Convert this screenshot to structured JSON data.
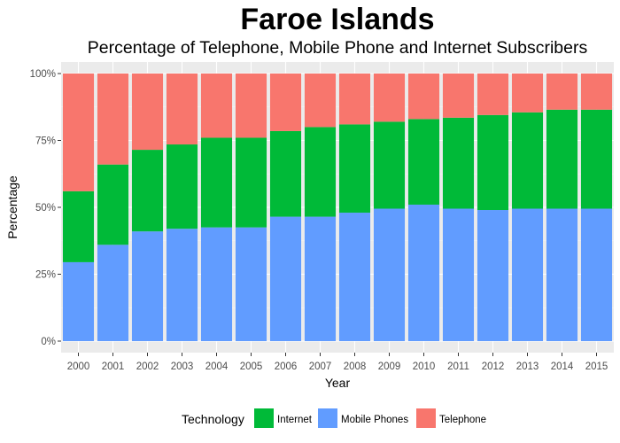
{
  "chart_data": {
    "type": "bar",
    "stacked": true,
    "percent": true,
    "title": "Faroe Islands",
    "subtitle": "Percentage of Telephone, Mobile Phone and Internet Subscribers",
    "xlabel": "Year",
    "ylabel": "Percentage",
    "ylim": [
      0,
      100
    ],
    "yticks": [
      "0%",
      "25%",
      "50%",
      "75%",
      "100%"
    ],
    "ytick_values": [
      0,
      25,
      50,
      75,
      100
    ],
    "grid": true,
    "legend_position": "bottom",
    "legend_title": "Technology",
    "categories": [
      "2000",
      "2001",
      "2002",
      "2003",
      "2004",
      "2005",
      "2006",
      "2007",
      "2008",
      "2009",
      "2010",
      "2011",
      "2012",
      "2013",
      "2014",
      "2015"
    ],
    "stack_order_bottom_to_top": [
      "Mobile Phones",
      "Internet",
      "Telephone"
    ],
    "series": [
      {
        "name": "Internet",
        "color": "#00ba38",
        "values": [
          26.5,
          30,
          30.5,
          31.5,
          33.5,
          33.5,
          32,
          33.5,
          33,
          32.5,
          32,
          34,
          35.5,
          36,
          37,
          37
        ]
      },
      {
        "name": "Mobile Phones",
        "color": "#619cff",
        "values": [
          29.5,
          36,
          41,
          42,
          42.5,
          42.5,
          46.5,
          46.5,
          48,
          49.5,
          51,
          49.5,
          49,
          49.5,
          49.5,
          49.5
        ]
      },
      {
        "name": "Telephone",
        "color": "#f8766d",
        "values": [
          44,
          34,
          28.5,
          26.5,
          24,
          24,
          21.5,
          20,
          19,
          18,
          17,
          16.5,
          15.5,
          14.5,
          13.5,
          13.5
        ]
      }
    ]
  }
}
